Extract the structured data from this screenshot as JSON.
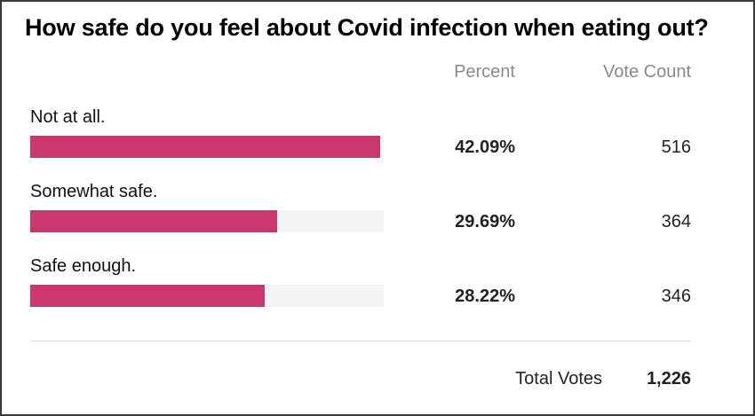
{
  "title": "How safe do you feel about Covid infection when eating out?",
  "columns": {
    "percent": "Percent",
    "votes": "Vote Count"
  },
  "options": [
    {
      "label": "Not at all.",
      "percent_text": "42.09%",
      "votes_text": "516"
    },
    {
      "label": "Somewhat safe.",
      "percent_text": "29.69%",
      "votes_text": "364"
    },
    {
      "label": "Safe enough.",
      "percent_text": "28.22%",
      "votes_text": "346"
    }
  ],
  "total": {
    "label": "Total Votes",
    "value": "1,226"
  },
  "colors": {
    "bar": "#c9376e",
    "track": "#f3f4f4"
  },
  "chart_data": {
    "type": "bar",
    "orientation": "horizontal",
    "title": "How safe do you feel about Covid infection when eating out?",
    "categories": [
      "Not at all.",
      "Somewhat safe.",
      "Safe enough."
    ],
    "series": [
      {
        "name": "Percent",
        "values": [
          42.09,
          29.69,
          28.22
        ]
      },
      {
        "name": "Vote Count",
        "values": [
          516,
          364,
          346
        ]
      }
    ],
    "bar_scale": "relative to largest option",
    "total_votes": 1226,
    "grid": false,
    "legend": "none"
  }
}
